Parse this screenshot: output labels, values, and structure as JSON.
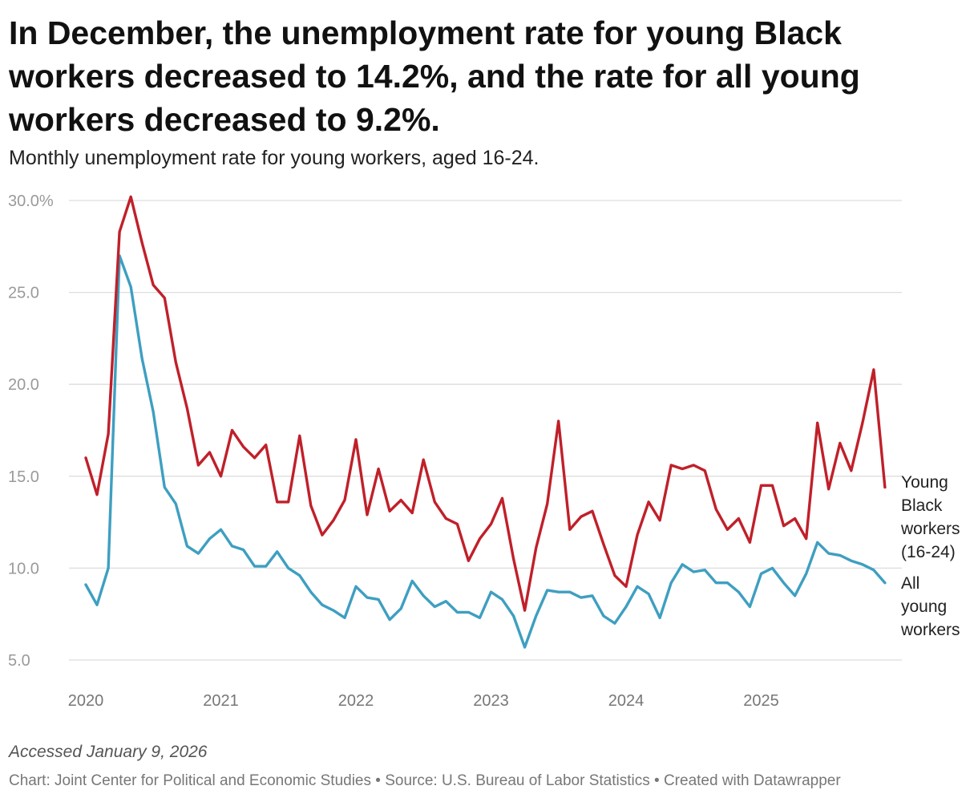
{
  "header": {
    "title": "In December, the unemployment rate for young Black workers decreased to 14.2%, and the rate for all young workers decreased to 9.2%.",
    "subtitle": "Monthly unemployment rate for young workers, aged 16-24."
  },
  "footer": {
    "accessed": "Accessed January 9, 2026",
    "credit": "Chart: Joint Center for Political and Economic Studies • Source: U.S. Bureau of Labor Statistics • Created with Datawrapper"
  },
  "chart_data": {
    "type": "line",
    "title": "In December, the unemployment rate for young Black workers decreased to 14.2%, and the rate for all young workers decreased to 9.2%.",
    "subtitle": "Monthly unemployment rate for young workers, aged 16-24.",
    "xlabel": "",
    "ylabel": "",
    "x_start": "2020-01",
    "x_interval": "month",
    "xlim": [
      2020.0,
      2025.917
    ],
    "ylim": [
      5,
      30
    ],
    "y_ticks": [
      30,
      25,
      20,
      15,
      10,
      5
    ],
    "y_tick_labels": [
      "30.0%",
      "25.0",
      "20.0",
      "15.0",
      "10.0",
      "5.0"
    ],
    "x_ticks": [
      2020,
      2021,
      2022,
      2023,
      2024,
      2025
    ],
    "x_tick_labels": [
      "2020",
      "2021",
      "2022",
      "2023",
      "2024",
      "2025"
    ],
    "grid": true,
    "series": [
      {
        "name": "Young Black workers (16-24)",
        "label_lines": [
          "Young",
          "Black",
          "workers",
          "(16-24)"
        ],
        "color": "#c0202a",
        "values": [
          16.0,
          14.0,
          17.3,
          28.3,
          30.2,
          27.7,
          25.4,
          24.7,
          21.2,
          18.7,
          15.6,
          16.3,
          15.0,
          17.5,
          16.6,
          16.0,
          16.7,
          13.6,
          13.6,
          17.2,
          13.4,
          11.8,
          12.6,
          13.7,
          17.0,
          12.9,
          15.4,
          13.1,
          13.7,
          13.0,
          15.9,
          13.6,
          12.7,
          12.4,
          10.4,
          11.6,
          12.4,
          13.8,
          10.5,
          7.7,
          11.1,
          13.5,
          18.0,
          12.1,
          12.8,
          13.1,
          11.3,
          9.6,
          9.0,
          11.8,
          13.6,
          12.6,
          15.6,
          15.4,
          15.6,
          15.3,
          13.2,
          12.1,
          12.7,
          11.4,
          14.5,
          14.5,
          12.3,
          12.7,
          11.6,
          17.9,
          14.3,
          16.8,
          15.3,
          17.9,
          20.8,
          14.4
        ]
      },
      {
        "name": "All young workers",
        "label_lines": [
          "All",
          "young",
          "workers"
        ],
        "color": "#3e9fc1",
        "values": [
          9.1,
          8.0,
          10.0,
          27.0,
          25.3,
          21.4,
          18.5,
          14.4,
          13.5,
          11.2,
          10.8,
          11.6,
          12.1,
          11.2,
          11.0,
          10.1,
          10.1,
          10.9,
          10.0,
          9.6,
          8.7,
          8.0,
          7.7,
          7.3,
          9.0,
          8.4,
          8.3,
          7.2,
          7.8,
          9.3,
          8.5,
          7.9,
          8.2,
          7.6,
          7.6,
          7.3,
          8.7,
          8.3,
          7.4,
          5.7,
          7.4,
          8.8,
          8.7,
          8.7,
          8.4,
          8.5,
          7.4,
          7.0,
          7.9,
          9.0,
          8.6,
          7.3,
          9.2,
          10.2,
          9.8,
          9.9,
          9.2,
          9.2,
          8.7,
          7.9,
          9.7,
          10.0,
          9.2,
          8.5,
          9.7,
          11.4,
          10.8,
          10.7,
          10.4,
          10.2,
          9.9,
          9.2
        ]
      }
    ]
  }
}
